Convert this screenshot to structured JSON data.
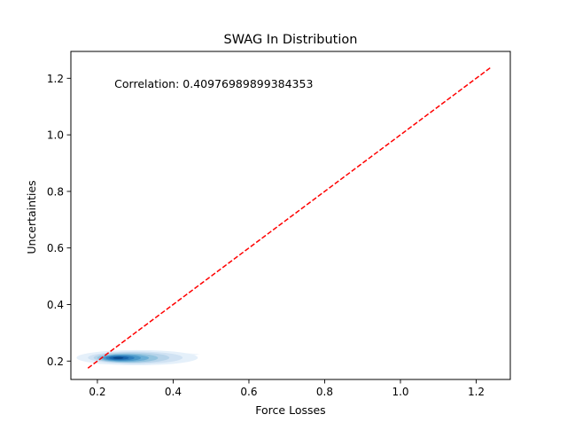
{
  "chart_data": {
    "type": "kde_contour_with_reference_line",
    "title": "SWAG In Distribution",
    "xlabel": "Force Losses",
    "ylabel": "Uncertainties",
    "xlim": [
      0.13,
      1.29
    ],
    "ylim": [
      0.135,
      1.295
    ],
    "xticks": [
      0.2,
      0.4,
      0.6,
      0.8,
      1.0,
      1.2
    ],
    "xtick_labels": [
      "0.2",
      "0.4",
      "0.6",
      "0.8",
      "1.0",
      "1.2"
    ],
    "yticks": [
      0.2,
      0.4,
      0.6,
      0.8,
      1.0,
      1.2
    ],
    "ytick_labels": [
      "0.2",
      "0.4",
      "0.6",
      "0.8",
      "1.0",
      "1.2"
    ],
    "grid": false,
    "annotation": {
      "text": "Correlation: 0.40976989899384353",
      "x": 0.245,
      "y": 1.18
    },
    "reference_line": {
      "style": "dashed",
      "color": "#ff0000",
      "x": [
        0.175,
        1.24
      ],
      "y": [
        0.175,
        1.24
      ]
    },
    "density_contours": {
      "colormap": "Blues",
      "levels": [
        {
          "center_x": 0.305,
          "center_y": 0.212,
          "rx": 0.16,
          "ry": 0.027,
          "color": "#e5f0fa"
        },
        {
          "center_x": 0.3,
          "center_y": 0.212,
          "rx": 0.125,
          "ry": 0.022,
          "color": "#d0e2f3"
        },
        {
          "center_x": 0.29,
          "center_y": 0.212,
          "rx": 0.1,
          "ry": 0.019,
          "color": "#b7d4ea"
        },
        {
          "center_x": 0.28,
          "center_y": 0.211,
          "rx": 0.08,
          "ry": 0.016,
          "color": "#94c4df"
        },
        {
          "center_x": 0.272,
          "center_y": 0.211,
          "rx": 0.064,
          "ry": 0.013,
          "color": "#6aaed6"
        },
        {
          "center_x": 0.265,
          "center_y": 0.211,
          "rx": 0.05,
          "ry": 0.011,
          "color": "#4a98c9"
        },
        {
          "center_x": 0.26,
          "center_y": 0.211,
          "rx": 0.038,
          "ry": 0.0085,
          "color": "#2e7ebc"
        },
        {
          "center_x": 0.257,
          "center_y": 0.211,
          "rx": 0.026,
          "ry": 0.006,
          "color": "#1764ab"
        },
        {
          "center_x": 0.255,
          "center_y": 0.211,
          "rx": 0.014,
          "ry": 0.0035,
          "color": "#08468a"
        }
      ],
      "outer_tail": {
        "x_start": 0.2,
        "x_end": 0.47,
        "y": 0.225,
        "color": "#eef5fc"
      }
    }
  }
}
